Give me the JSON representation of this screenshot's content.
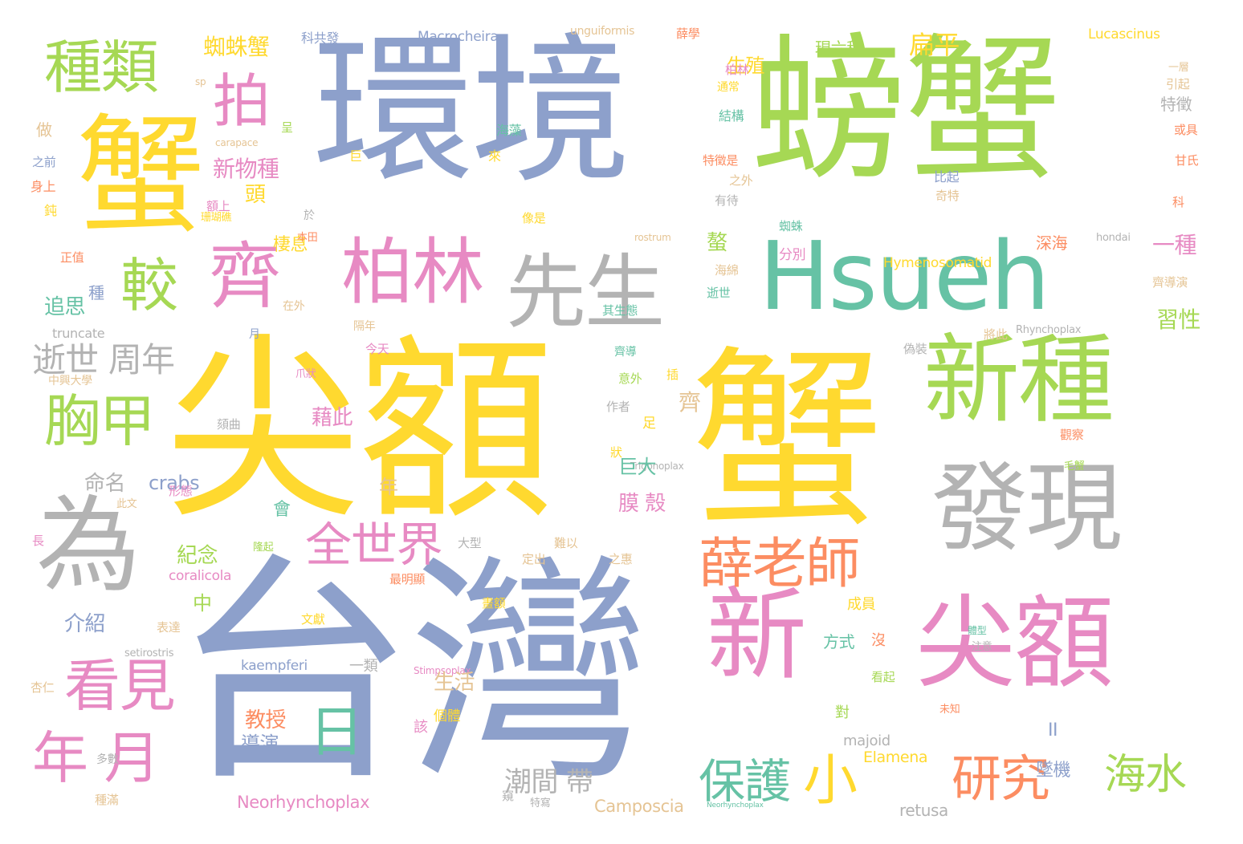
{
  "palette": {
    "blue": "#8DA0CB",
    "green": "#A6D854",
    "yellow": "#FFD92F",
    "gray": "#B3B3B3",
    "pink": "#E78AC3",
    "teal": "#66C2A5",
    "orange": "#FC8D62",
    "tan": "#E5C494"
  },
  "words": [
    {
      "id": "taiwan",
      "text": "台灣",
      "color": "#8DA0CB"
    },
    {
      "id": "jianedxie",
      "text": "尖額",
      "color": "#FFD92F"
    },
    {
      "id": "xie_big",
      "text": "蟹",
      "color": "#FFD92F"
    },
    {
      "id": "huanjing",
      "text": "環境",
      "color": "#8DA0CB"
    },
    {
      "id": "pangxie",
      "text": "螃蟹",
      "color": "#A6D854"
    },
    {
      "id": "xie_left",
      "text": "蟹",
      "color": "#FFD92F"
    },
    {
      "id": "hsueh",
      "text": "Hsueh",
      "color": "#66C2A5"
    },
    {
      "id": "xinzhong",
      "text": "新種",
      "color": "#A6D854"
    },
    {
      "id": "faxian",
      "text": "發現",
      "color": "#B3B3B3"
    },
    {
      "id": "xin",
      "text": "新",
      "color": "#E78AC3"
    },
    {
      "id": "jiane2",
      "text": "尖額",
      "color": "#E78AC3"
    },
    {
      "id": "wei",
      "text": "為",
      "color": "#B3B3B3"
    },
    {
      "id": "xiansheng",
      "text": "先生",
      "color": "#B3B3B3"
    },
    {
      "id": "bolin",
      "text": "柏林",
      "color": "#E78AC3"
    },
    {
      "id": "qi",
      "text": "齊",
      "color": "#E78AC3"
    },
    {
      "id": "zhonglei",
      "text": "種類",
      "color": "#A6D854"
    },
    {
      "id": "pai",
      "text": "拍",
      "color": "#E78AC3"
    },
    {
      "id": "jiao",
      "text": "較",
      "color": "#A6D854"
    },
    {
      "id": "xiongjia",
      "text": "胸甲",
      "color": "#A6D854"
    },
    {
      "id": "kanjian",
      "text": "看見",
      "color": "#E78AC3"
    },
    {
      "id": "nianyue",
      "text": "年 月",
      "color": "#E78AC3"
    },
    {
      "id": "xuelaoshi",
      "text": "薛老師",
      "color": "#FC8D62"
    },
    {
      "id": "quanshijie",
      "text": "全世界",
      "color": "#E78AC3"
    },
    {
      "id": "ri",
      "text": "日",
      "color": "#66C2A5"
    },
    {
      "id": "baohu",
      "text": "保護",
      "color": "#66C2A5"
    },
    {
      "id": "xiao",
      "text": "小",
      "color": "#FFD92F"
    },
    {
      "id": "yanjiu",
      "text": "研究",
      "color": "#FC8D62"
    },
    {
      "id": "haishui",
      "text": "海水",
      "color": "#A6D854"
    },
    {
      "id": "shishi",
      "text": "逝世 周年",
      "color": "#B3B3B3"
    },
    {
      "id": "chaojiandai",
      "text": "潮間 帶",
      "color": "#B3B3B3"
    },
    {
      "id": "zhizhuxie",
      "text": "蜘蛛蟹",
      "color": "#FFD92F"
    },
    {
      "id": "xinwuzhong",
      "text": "新物種",
      "color": "#E78AC3"
    },
    {
      "id": "xixi",
      "text": "棲息",
      "color": "#FFD92F"
    },
    {
      "id": "shengzhi",
      "text": "生殖",
      "color": "#FFD92F"
    },
    {
      "id": "bianping",
      "text": "扁平",
      "color": "#FFD92F"
    },
    {
      "id": "xianliuzhong",
      "text": "現六種",
      "color": "#A6D854"
    },
    {
      "id": "kegongfa",
      "text": "科共發",
      "color": "#8DA0CB"
    },
    {
      "id": "macrocheira",
      "text": "Macrocheira",
      "color": "#8DA0CB"
    },
    {
      "id": "unguiformis",
      "text": "unguiformis",
      "color": "#E5C494"
    },
    {
      "id": "lucascinus",
      "text": "Lucascinus",
      "color": "#FFD92F"
    },
    {
      "id": "hymeno",
      "text": "Hymenosomatid",
      "color": "#FFD92F"
    },
    {
      "id": "crabs",
      "text": "crabs",
      "color": "#8DA0CB"
    },
    {
      "id": "mingming",
      "text": "命名",
      "color": "#B3B3B3"
    },
    {
      "id": "jinian",
      "text": "紀念",
      "color": "#A6D854"
    },
    {
      "id": "jieshao",
      "text": "介紹",
      "color": "#8DA0CB"
    },
    {
      "id": "jiaoshou",
      "text": "教授",
      "color": "#FC8D62"
    },
    {
      "id": "daoyan",
      "text": "導演",
      "color": "#8DA0CB"
    },
    {
      "id": "neorhyncho",
      "text": "Neorhynchoplax",
      "color": "#E78AC3"
    },
    {
      "id": "camposcia",
      "text": "Camposcia",
      "color": "#E5C494"
    },
    {
      "id": "retusa",
      "text": "retusa",
      "color": "#B3B3B3"
    },
    {
      "id": "elamena",
      "text": "Elamena",
      "color": "#FFD92F"
    },
    {
      "id": "majoid",
      "text": "majoid",
      "color": "#B3B3B3"
    },
    {
      "id": "kaempferi",
      "text": "kaempferi",
      "color": "#8DA0CB"
    },
    {
      "id": "yilei",
      "text": "一類",
      "color": "#B3B3B3"
    },
    {
      "id": "coralicola",
      "text": "coralicola",
      "color": "#E78AC3"
    },
    {
      "id": "truncate",
      "text": "truncate",
      "color": "#B3B3B3"
    },
    {
      "id": "setirostris",
      "text": "setirostris",
      "color": "#B3B3B3"
    },
    {
      "id": "stimpsoplax",
      "text": "Stimpsoplax",
      "color": "#E78AC3"
    },
    {
      "id": "trigonoplax",
      "text": "Trigonoplax",
      "color": "#B3B3B3"
    },
    {
      "id": "rhynchoplax",
      "text": "Rhynchoplax",
      "color": "#B3B3B3"
    },
    {
      "id": "hondai",
      "text": "hondai",
      "color": "#B3B3B3"
    },
    {
      "id": "rostrum",
      "text": "rostrum",
      "color": "#E5C494"
    },
    {
      "id": "carapace",
      "text": "carapace",
      "color": "#E5C494"
    },
    {
      "id": "sp",
      "text": "sp",
      "color": "#E5C494"
    },
    {
      "id": "neorhyn_small",
      "text": "Neorhynchoplax",
      "color": "#66C2A5"
    },
    {
      "id": "ii",
      "text": "II",
      "color": "#8DA0CB"
    },
    {
      "id": "yizhong",
      "text": "一種",
      "color": "#E78AC3"
    },
    {
      "id": "xixing",
      "text": "習性",
      "color": "#A6D854"
    },
    {
      "id": "tezheng",
      "text": "特徵",
      "color": "#B3B3B3"
    },
    {
      "id": "shenhai",
      "text": "深海",
      "color": "#FC8D62"
    },
    {
      "id": "zhuiji",
      "text": "墜機",
      "color": "#8DA0CB"
    },
    {
      "id": "jujia",
      "text": "巨大",
      "color": "#66C2A5"
    },
    {
      "id": "moke",
      "text": "膜 殼",
      "color": "#E78AC3"
    },
    {
      "id": "jieci",
      "text": "藉此",
      "color": "#E78AC3"
    },
    {
      "id": "shenghuo",
      "text": "生活",
      "color": "#E5C494"
    },
    {
      "id": "fangshi",
      "text": "方式",
      "color": "#66C2A5"
    },
    {
      "id": "chengyuan",
      "text": "成員",
      "color": "#FFD92F"
    },
    {
      "id": "tou",
      "text": "頭",
      "color": "#FFD92F"
    },
    {
      "id": "ao",
      "text": "螯",
      "color": "#A6D854"
    },
    {
      "id": "zhong",
      "text": "種",
      "color": "#8DA0CB"
    },
    {
      "id": "zhuisi",
      "text": "追思",
      "color": "#66C2A5"
    },
    {
      "id": "zuo",
      "text": "做",
      "color": "#E5C494"
    },
    {
      "id": "zhiqian",
      "text": "之前",
      "color": "#8DA0CB"
    },
    {
      "id": "shenshang",
      "text": "身上",
      "color": "#FC8D62"
    },
    {
      "id": "dun",
      "text": "鈍",
      "color": "#FFD92F"
    },
    {
      "id": "zhengzhi",
      "text": "正值",
      "color": "#FC8D62"
    },
    {
      "id": "yue",
      "text": "月",
      "color": "#8DA0CB"
    },
    {
      "id": "zhongxing",
      "text": "中興大學",
      "color": "#E5C494"
    },
    {
      "id": "chang",
      "text": "長",
      "color": "#E78AC3"
    },
    {
      "id": "xingren",
      "text": "杏仁",
      "color": "#E5C494"
    },
    {
      "id": "zhongman",
      "text": "種滿",
      "color": "#E5C494"
    },
    {
      "id": "duoshu",
      "text": "多數",
      "color": "#B3B3B3"
    },
    {
      "id": "ju",
      "text": "巨",
      "color": "#FFD92F"
    },
    {
      "id": "lai",
      "text": "來",
      "color": "#FFD92F"
    },
    {
      "id": "haizao",
      "text": "海藻",
      "color": "#66C2A5"
    },
    {
      "id": "jiegou",
      "text": "結構",
      "color": "#66C2A5"
    },
    {
      "id": "tezhengshi",
      "text": "特徵是",
      "color": "#FC8D62"
    },
    {
      "id": "zhiwai",
      "text": "之外",
      "color": "#E5C494"
    },
    {
      "id": "youdai",
      "text": "有待",
      "color": "#B3B3B3"
    },
    {
      "id": "zhizhu",
      "text": "蜘蛛",
      "color": "#66C2A5"
    },
    {
      "id": "fenbie",
      "text": "分別",
      "color": "#E78AC3"
    },
    {
      "id": "haimian",
      "text": "海綿",
      "color": "#E5C494"
    },
    {
      "id": "shishi2",
      "text": "逝世",
      "color": "#66C2A5"
    },
    {
      "id": "bolin2",
      "text": "柏林",
      "color": "#E78AC3"
    },
    {
      "id": "tongchang",
      "text": "通常",
      "color": "#FFD92F"
    },
    {
      "id": "biqi",
      "text": "比起",
      "color": "#8DA0CB"
    },
    {
      "id": "qite",
      "text": "奇特",
      "color": "#E5C494"
    },
    {
      "id": "yinqi",
      "text": "引起",
      "color": "#E5C494"
    },
    {
      "id": "huoju",
      "text": "或具",
      "color": "#FC8D62"
    },
    {
      "id": "ganshi",
      "text": "甘氏",
      "color": "#FC8D62"
    },
    {
      "id": "ke",
      "text": "科",
      "color": "#FC8D62"
    },
    {
      "id": "yiceng",
      "text": "一層",
      "color": "#E5C494"
    },
    {
      "id": "qidaoyan",
      "text": "齊導演",
      "color": "#E5C494"
    },
    {
      "id": "jiangci",
      "text": "將此",
      "color": "#E5C494"
    },
    {
      "id": "weizhuang",
      "text": "偽裝",
      "color": "#B3B3B3"
    },
    {
      "id": "guancha",
      "text": "觀察",
      "color": "#FC8D62"
    },
    {
      "id": "maoxie",
      "text": "毛蟹",
      "color": "#A6D854"
    },
    {
      "id": "tixing",
      "text": "體型",
      "color": "#66C2A5"
    },
    {
      "id": "zhuyi",
      "text": "注意",
      "color": "#B3B3B3"
    },
    {
      "id": "kanqi",
      "text": "看起",
      "color": "#A6D854"
    },
    {
      "id": "weizhi",
      "text": "未知",
      "color": "#FC8D62"
    },
    {
      "id": "gai",
      "text": "該",
      "color": "#E78AC3"
    },
    {
      "id": "duo",
      "text": "對",
      "color": "#A6D854"
    },
    {
      "id": "mei",
      "text": "沒",
      "color": "#FC8D62"
    },
    {
      "id": "getii",
      "text": "個體",
      "color": "#FFD92F"
    },
    {
      "id": "kui",
      "text": "窺",
      "color": "#B3B3B3"
    },
    {
      "id": "tejiao",
      "text": "特寫",
      "color": "#B3B3B3"
    },
    {
      "id": "xingtai",
      "text": "形態",
      "color": "#E78AC3"
    },
    {
      "id": "zhuang",
      "text": "狀",
      "color": "#FFD92F"
    },
    {
      "id": "zuozhe",
      "text": "作者",
      "color": "#B3B3B3"
    },
    {
      "id": "yiwai",
      "text": "意外",
      "color": "#A6D854"
    },
    {
      "id": "qidao",
      "text": "齊導",
      "color": "#66C2A5"
    },
    {
      "id": "qi2",
      "text": "齊",
      "color": "#E5C494"
    },
    {
      "id": "zu",
      "text": "足",
      "color": "#FFD92F"
    },
    {
      "id": "nian",
      "text": "年",
      "color": "#E5C494"
    },
    {
      "id": "hui",
      "text": "會",
      "color": "#66C2A5"
    },
    {
      "id": "zhong2",
      "text": "中",
      "color": "#A6D854"
    },
    {
      "id": "biaoda",
      "text": "表達",
      "color": "#E5C494"
    },
    {
      "id": "wenxian",
      "text": "文獻",
      "color": "#FFD92F"
    },
    {
      "id": "huae",
      "text": "畫額",
      "color": "#FFD92F"
    },
    {
      "id": "zuimingxian",
      "text": "最明顯",
      "color": "#FC8D62"
    },
    {
      "id": "dachu",
      "text": "定出",
      "color": "#E5C494"
    },
    {
      "id": "nanyi",
      "text": "難以",
      "color": "#E5C494"
    },
    {
      "id": "zhihui",
      "text": "之惠",
      "color": "#E5C494"
    },
    {
      "id": "daxing",
      "text": "大型",
      "color": "#B3B3B3"
    },
    {
      "id": "geqian",
      "text": "頦曲",
      "color": "#B3B3B3"
    },
    {
      "id": "jintian",
      "text": "今天",
      "color": "#E78AC3"
    },
    {
      "id": "genian",
      "text": "隔年",
      "color": "#E5C494"
    },
    {
      "id": "zaiwai",
      "text": "在外",
      "color": "#E5C494"
    },
    {
      "id": "qishengtai",
      "text": "其生態",
      "color": "#66C2A5"
    },
    {
      "id": "shanhujiao",
      "text": "珊瑚礁",
      "color": "#FFD92F"
    },
    {
      "id": "benttian",
      "text": "本田",
      "color": "#FC8D62"
    },
    {
      "id": "xiangshi",
      "text": "像是",
      "color": "#FFD92F"
    },
    {
      "id": "yu",
      "text": "於",
      "color": "#B3B3B3"
    },
    {
      "id": "cheng",
      "text": "呈",
      "color": "#A6D854"
    },
    {
      "id": "xuexue",
      "text": "薛學",
      "color": "#FC8D62"
    },
    {
      "id": "zhuazhuang",
      "text": "爪狀",
      "color": "#E78AC3"
    },
    {
      "id": "cijian",
      "text": "此文",
      "color": "#E5C494"
    },
    {
      "id": "longqi",
      "text": "隆起",
      "color": "#A6D854"
    },
    {
      "id": "chatou",
      "text": "插",
      "color": "#FFD92F"
    },
    {
      "id": "shangjie",
      "text": "額上",
      "color": "#E78AC3"
    }
  ]
}
